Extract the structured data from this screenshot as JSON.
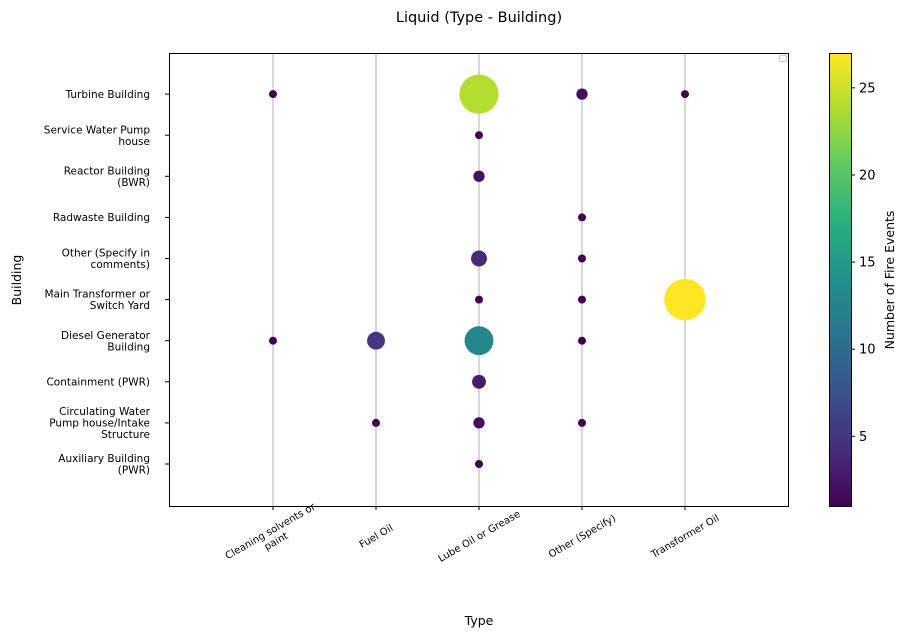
{
  "chart_data": {
    "type": "scatter",
    "title": "Liquid (Type - Building)",
    "xlabel": "Type",
    "ylabel": "Building",
    "x_categories": [
      [
        "Cleaning solvents or",
        "paint"
      ],
      [
        "Fuel Oil"
      ],
      [
        "Lube Oil or Grease"
      ],
      [
        "Other (Specify)"
      ],
      [
        "Transformer Oil"
      ]
    ],
    "y_categories": [
      [
        "Auxiliary Building",
        "(PWR)"
      ],
      [
        "Circulating Water",
        "Pump house/Intake",
        "Structure"
      ],
      [
        "Containment (PWR)"
      ],
      [
        "Diesel Generator",
        "Building"
      ],
      [
        "Main Transformer or",
        "Switch Yard"
      ],
      [
        "Other (Specify in",
        "comments)"
      ],
      [
        "Radwaste Building"
      ],
      [
        "Reactor Building",
        "(BWR)"
      ],
      [
        "Service Water Pump",
        "house"
      ],
      [
        "Turbine Building"
      ]
    ],
    "points": [
      {
        "x": 0,
        "y": 9,
        "count": 1
      },
      {
        "x": 2,
        "y": 9,
        "count": 24
      },
      {
        "x": 3,
        "y": 9,
        "count": 2
      },
      {
        "x": 4,
        "y": 9,
        "count": 1
      },
      {
        "x": 2,
        "y": 8,
        "count": 1
      },
      {
        "x": 2,
        "y": 7,
        "count": 2
      },
      {
        "x": 3,
        "y": 6,
        "count": 1
      },
      {
        "x": 2,
        "y": 5,
        "count": 4
      },
      {
        "x": 3,
        "y": 5,
        "count": 1
      },
      {
        "x": 2,
        "y": 4,
        "count": 1
      },
      {
        "x": 3,
        "y": 4,
        "count": 1
      },
      {
        "x": 4,
        "y": 4,
        "count": 27
      },
      {
        "x": 0,
        "y": 3,
        "count": 1
      },
      {
        "x": 1,
        "y": 3,
        "count": 5
      },
      {
        "x": 2,
        "y": 3,
        "count": 13
      },
      {
        "x": 3,
        "y": 3,
        "count": 1
      },
      {
        "x": 2,
        "y": 2,
        "count": 3
      },
      {
        "x": 1,
        "y": 1,
        "count": 1
      },
      {
        "x": 2,
        "y": 1,
        "count": 2
      },
      {
        "x": 3,
        "y": 1,
        "count": 1
      },
      {
        "x": 2,
        "y": 0,
        "count": 1
      }
    ],
    "colorbar": {
      "label": "Number of Fire Events",
      "min": 1,
      "max": 27,
      "ticks": [
        5,
        10,
        15,
        20,
        25
      ],
      "colormap": "viridis"
    },
    "grid": "vertical lines at each x category",
    "legend": "top-right"
  }
}
